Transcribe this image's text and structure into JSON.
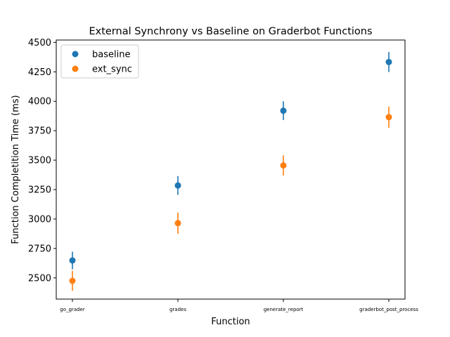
{
  "chart_data": {
    "type": "scatter",
    "title": "External Synchrony vs Baseline on Graderbot Functions",
    "xlabel": "Function",
    "ylabel": "Function Completition Time (ms)",
    "categories": [
      "go_grader",
      "grades",
      "generate_report",
      "graderbot_post_process"
    ],
    "ylim": [
      2320,
      4520
    ],
    "yticks": [
      2500,
      2750,
      3000,
      3250,
      3500,
      3750,
      4000,
      4250,
      4500
    ],
    "grid": false,
    "legend_placement": "top-left",
    "series": [
      {
        "name": "baseline",
        "color": "#1f77b4",
        "values": [
          2648,
          3285,
          3920,
          4333
        ],
        "errors": [
          75,
          80,
          80,
          85
        ]
      },
      {
        "name": "ext_sync",
        "color": "#ff7f0e",
        "values": [
          2475,
          2965,
          3455,
          3865
        ],
        "errors": [
          85,
          90,
          85,
          90
        ]
      }
    ]
  }
}
